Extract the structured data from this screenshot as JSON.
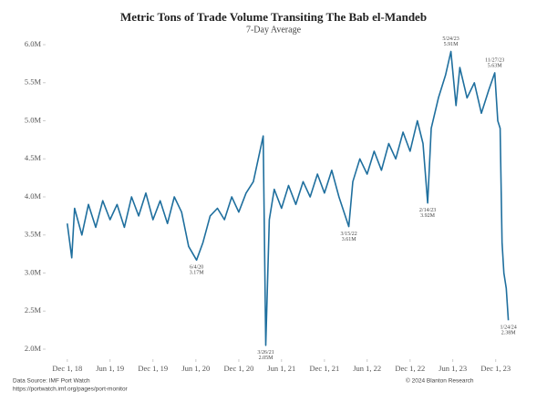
{
  "chart_data": {
    "type": "line",
    "title": "Metric Tons of Trade Volume Transiting The Bab el-Mandeb",
    "subtitle": "7-Day Average",
    "source": "Data Source: IMF Port Watch",
    "source_url": "https://portwatch.imf.org/pages/port-monitor",
    "copyright": "© 2024 Blanton Research",
    "x": [
      "2018-12-01",
      "2018-12-20",
      "2019-01-01",
      "2019-02-01",
      "2019-03-01",
      "2019-04-01",
      "2019-05-01",
      "2019-06-01",
      "2019-07-01",
      "2019-08-01",
      "2019-09-01",
      "2019-10-01",
      "2019-11-01",
      "2019-12-01",
      "2020-01-01",
      "2020-02-01",
      "2020-03-01",
      "2020-04-01",
      "2020-05-01",
      "2020-06-04",
      "2020-07-01",
      "2020-08-01",
      "2020-09-01",
      "2020-10-01",
      "2020-11-01",
      "2020-12-01",
      "2021-01-01",
      "2021-02-01",
      "2021-03-15",
      "2021-03-26",
      "2021-04-10",
      "2021-05-01",
      "2021-06-01",
      "2021-07-01",
      "2021-08-01",
      "2021-09-01",
      "2021-10-01",
      "2021-11-01",
      "2021-12-01",
      "2022-01-01",
      "2022-02-01",
      "2022-03-15",
      "2022-04-01",
      "2022-05-01",
      "2022-06-01",
      "2022-07-01",
      "2022-08-01",
      "2022-09-01",
      "2022-10-01",
      "2022-11-01",
      "2022-12-01",
      "2023-01-01",
      "2023-01-25",
      "2023-02-14",
      "2023-03-01",
      "2023-04-01",
      "2023-05-01",
      "2023-05-24",
      "2023-06-15",
      "2023-07-01",
      "2023-08-01",
      "2023-09-01",
      "2023-10-01",
      "2023-11-01",
      "2023-11-27",
      "2023-12-10",
      "2023-12-20",
      "2023-12-28",
      "2024-01-05",
      "2024-01-15",
      "2024-01-24"
    ],
    "series": [
      {
        "name": "Trade volume",
        "color": "#1f6f9e",
        "values": [
          3.65,
          3.2,
          3.85,
          3.5,
          3.9,
          3.6,
          3.95,
          3.7,
          3.9,
          3.6,
          4.0,
          3.75,
          4.05,
          3.7,
          3.95,
          3.65,
          4.0,
          3.8,
          3.35,
          3.17,
          3.4,
          3.75,
          3.85,
          3.7,
          4.0,
          3.8,
          4.05,
          4.2,
          4.8,
          2.05,
          3.7,
          4.1,
          3.85,
          4.15,
          3.9,
          4.2,
          4.0,
          4.3,
          4.05,
          4.35,
          4.0,
          3.61,
          4.2,
          4.5,
          4.3,
          4.6,
          4.35,
          4.7,
          4.5,
          4.85,
          4.6,
          5.0,
          4.7,
          3.92,
          4.9,
          5.3,
          5.6,
          5.91,
          5.2,
          5.7,
          5.3,
          5.5,
          5.1,
          5.4,
          5.63,
          5.0,
          4.9,
          3.4,
          3.0,
          2.8,
          2.38
        ]
      }
    ],
    "annotations": [
      {
        "x": "2020-06-04",
        "value": 3.17,
        "label": "6/4/20",
        "value_label": "3.17M",
        "position": "below"
      },
      {
        "x": "2021-03-26",
        "value": 2.05,
        "label": "3/26/21",
        "value_label": "2.05M",
        "position": "below"
      },
      {
        "x": "2022-03-15",
        "value": 3.61,
        "label": "3/15/22",
        "value_label": "3.61M",
        "position": "below"
      },
      {
        "x": "2023-02-14",
        "value": 3.92,
        "label": "2/14/23",
        "value_label": "3.92M",
        "position": "below"
      },
      {
        "x": "2023-05-24",
        "value": 5.91,
        "label": "5/24/23",
        "value_label": "5.91M",
        "position": "above"
      },
      {
        "x": "2023-11-27",
        "value": 5.63,
        "label": "11/27/23",
        "value_label": "5.63M",
        "position": "above"
      },
      {
        "x": "2024-01-24",
        "value": 2.38,
        "label": "1/24/24",
        "value_label": "2.38M",
        "position": "below"
      }
    ],
    "xlim": [
      "2018-11-20",
      "2024-02-10"
    ],
    "xticks": [
      {
        "value": "2018-12-01",
        "label": "Dec 1, 18"
      },
      {
        "value": "2019-06-01",
        "label": "Jun 1, 19"
      },
      {
        "value": "2019-12-01",
        "label": "Dec 1, 19"
      },
      {
        "value": "2020-06-01",
        "label": "Jun 1, 20"
      },
      {
        "value": "2020-12-01",
        "label": "Dec 1, 20"
      },
      {
        "value": "2021-06-01",
        "label": "Jun 1, 21"
      },
      {
        "value": "2021-12-01",
        "label": "Dec 1, 21"
      },
      {
        "value": "2022-06-01",
        "label": "Jun 1, 22"
      },
      {
        "value": "2022-12-01",
        "label": "Dec 1, 22"
      },
      {
        "value": "2023-06-01",
        "label": "Jun 1, 23"
      },
      {
        "value": "2023-12-01",
        "label": "Dec 1, 23"
      }
    ],
    "ylim": [
      2.0,
      6.0
    ],
    "yticks": [
      {
        "value": 2.0,
        "label": "2.0M"
      },
      {
        "value": 2.5,
        "label": "2.5M"
      },
      {
        "value": 3.0,
        "label": "3.0M"
      },
      {
        "value": 3.5,
        "label": "3.5M"
      },
      {
        "value": 4.0,
        "label": "4.0M"
      },
      {
        "value": 4.5,
        "label": "4.5M"
      },
      {
        "value": 5.0,
        "label": "5.0M"
      },
      {
        "value": 5.5,
        "label": "5.5M"
      },
      {
        "value": 6.0,
        "label": "6.0M"
      }
    ],
    "grid": false
  }
}
